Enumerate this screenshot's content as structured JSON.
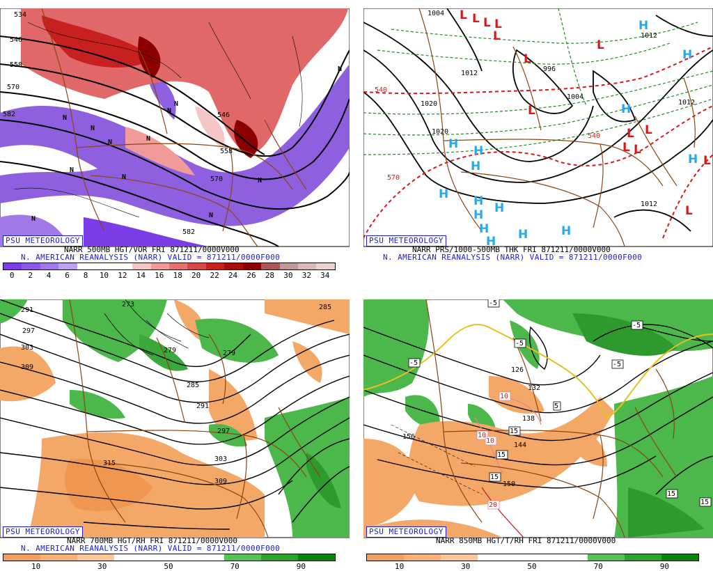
{
  "colors": {
    "blue": "#1b1bd6",
    "red": "#d81818",
    "cyan": "#28a8e8",
    "border": "#8b4513"
  },
  "panels": [
    {
      "id": "vorticity",
      "badge": "PSU METEOROLOGY",
      "caption1": "NARR 500MB HGT/VOR FRI 871211/0000V000",
      "caption2": "N. AMERICAN REANALYSIS (NARR) VALID = 871211/0000F000",
      "scale_colors": [
        "#7c3ce8",
        "#8e58e8",
        "#a27ae8",
        "#bca2ee",
        "#ffffff",
        "#ffffff",
        "#ffffff",
        "#f6c6c6",
        "#f09a9a",
        "#e47272",
        "#d84848",
        "#c82020",
        "#a80c0c",
        "#8c0000",
        "#a85858",
        "#c09a9a",
        "#d8b8b8",
        "#e8d2d2"
      ],
      "scale_labels": [
        "0",
        "2",
        "4",
        "6",
        "8",
        "10",
        "12",
        "14",
        "16",
        "18",
        "20",
        "22",
        "24",
        "26",
        "28",
        "30",
        "32",
        "34"
      ],
      "contour_labels": [
        "534",
        "546",
        "558",
        "570",
        "582",
        "546",
        "558",
        "570",
        "582"
      ]
    },
    {
      "id": "pressure",
      "badge": "PSU METEOROLOGY",
      "caption1": "NARR PRS/1000-500MB THK FRI 871211/0000V000",
      "caption2": "N. AMERICAN REANALYSIS (NARR) VALID = 871211/0000F000",
      "contour_labels": [
        "1004",
        "1012",
        "1020",
        "1020",
        "1012",
        "996",
        "1004",
        "1012",
        "1012",
        "540",
        "540",
        "570"
      ],
      "high_symbol": "H",
      "low_symbol": "L"
    },
    {
      "id": "rh700",
      "badge": "PSU METEOROLOGY",
      "caption1": "NARR 700MB HGT/RH FRI 871211/0000V000",
      "caption2": "N. AMERICAN REANALYSIS (NARR) VALID = 871211/0000F000",
      "scale_colors": [
        "#f0a060",
        "#f4b27a",
        "#f8c89c",
        "#ffffff",
        "#ffffff",
        "#ffffff",
        "#58c058",
        "#30a030",
        "#108010"
      ],
      "scale_labels": [
        "10",
        "30",
        "50",
        "70",
        "90"
      ],
      "contour_labels": [
        "291",
        "297",
        "303",
        "309",
        "273",
        "279",
        "279",
        "285",
        "285",
        "291",
        "297",
        "303",
        "309",
        "315"
      ]
    },
    {
      "id": "t850",
      "badge": "PSU METEOROLOGY",
      "caption1": "NARR 850MB HGT/T/RH FRI 871211/0000V000",
      "caption2": "",
      "scale_colors": [
        "#f0a060",
        "#f4b27a",
        "#f8c89c",
        "#ffffff",
        "#ffffff",
        "#ffffff",
        "#58c058",
        "#30a030",
        "#108010"
      ],
      "scale_labels": [
        "10",
        "30",
        "50",
        "70",
        "90"
      ],
      "contour_labels": [
        "-5",
        "-5",
        "-5",
        "-5",
        "-5",
        "5",
        "10",
        "10",
        "10",
        "15",
        "15",
        "15",
        "15",
        "15",
        "20",
        "126",
        "132",
        "138",
        "144",
        "150",
        "156"
      ]
    }
  ]
}
